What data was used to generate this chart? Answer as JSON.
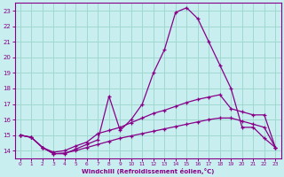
{
  "xlabel": "Windchill (Refroidissement éolien,°C)",
  "bg_color": "#c8eef0",
  "grid_color": "#a0d8d0",
  "line_color": "#880088",
  "xlim": [
    -0.5,
    23.5
  ],
  "ylim": [
    13.5,
    23.5
  ],
  "yticks": [
    14,
    15,
    16,
    17,
    18,
    19,
    20,
    21,
    22,
    23
  ],
  "xticks": [
    0,
    1,
    2,
    3,
    4,
    5,
    6,
    7,
    8,
    9,
    10,
    11,
    12,
    13,
    14,
    15,
    16,
    17,
    18,
    19,
    20,
    21,
    22,
    23
  ],
  "line1_x": [
    0,
    1,
    2,
    3,
    4,
    5,
    6,
    7,
    8,
    9,
    10,
    11,
    12,
    13,
    14,
    15,
    16,
    17,
    18,
    19,
    20,
    21,
    22,
    23
  ],
  "line1_y": [
    15.0,
    14.85,
    14.2,
    13.8,
    13.8,
    14.1,
    14.4,
    14.7,
    17.5,
    15.3,
    16.0,
    17.0,
    19.0,
    20.5,
    22.9,
    23.2,
    22.5,
    21.0,
    19.5,
    18.0,
    15.5,
    15.5,
    14.8,
    14.2
  ],
  "line2_x": [
    0,
    1,
    2,
    3,
    4,
    5,
    6,
    7,
    8,
    9,
    10,
    11,
    12,
    13,
    14,
    15,
    16,
    17,
    18,
    19,
    20,
    21,
    22,
    23
  ],
  "line2_y": [
    15.0,
    14.85,
    14.2,
    13.9,
    14.0,
    14.3,
    14.55,
    15.1,
    15.3,
    15.5,
    15.8,
    16.1,
    16.4,
    16.6,
    16.85,
    17.1,
    17.3,
    17.45,
    17.6,
    16.7,
    16.5,
    16.3,
    16.3,
    14.2
  ],
  "line3_x": [
    0,
    1,
    2,
    3,
    4,
    5,
    6,
    7,
    8,
    9,
    10,
    11,
    12,
    13,
    14,
    15,
    16,
    17,
    18,
    19,
    20,
    21,
    22,
    23
  ],
  "line3_y": [
    15.0,
    14.85,
    14.2,
    13.8,
    13.85,
    14.0,
    14.2,
    14.4,
    14.6,
    14.8,
    14.95,
    15.1,
    15.25,
    15.4,
    15.55,
    15.7,
    15.85,
    16.0,
    16.1,
    16.1,
    15.9,
    15.7,
    15.5,
    14.2
  ]
}
